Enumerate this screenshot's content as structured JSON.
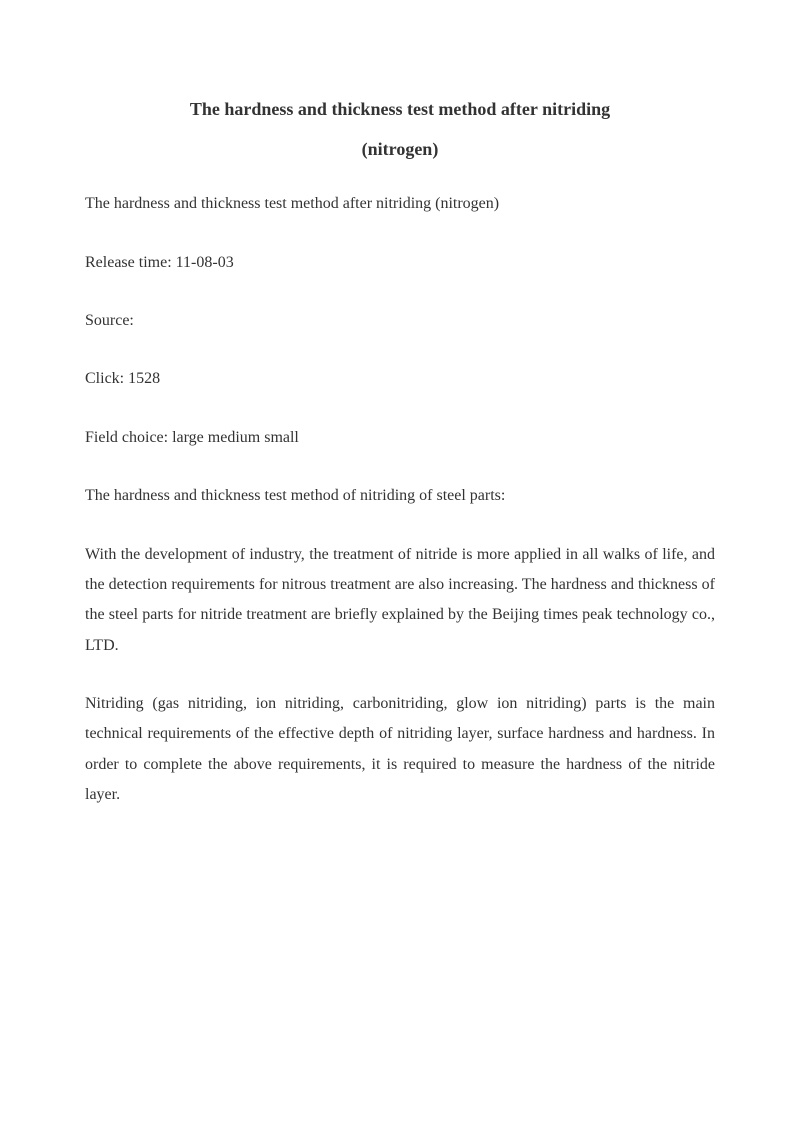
{
  "title": {
    "line1": "The hardness and thickness test method after nitriding",
    "line2": "(nitrogen)"
  },
  "paragraphs": {
    "p1": "The hardness and thickness test method after nitriding (nitrogen)",
    "p2": "Release time: 11-08-03",
    "p3": "Source:",
    "p4": "Click: 1528",
    "p5": "Field choice: large medium small",
    "p6": "The hardness and thickness test method of nitriding of steel parts:",
    "p7": "With the development of industry, the treatment of nitride is more applied in all walks of life, and the detection requirements for nitrous treatment are also increasing. The hardness and thickness of the steel parts for nitride treatment are briefly explained by the Beijing times peak technology co., LTD.",
    "p8": "Nitriding (gas nitriding, ion nitriding, carbonitriding, glow ion nitriding) parts is the main technical requirements of the effective depth of nitriding layer, surface hardness and hardness. In order to complete the above requirements, it is required to measure the hardness of the nitride layer."
  }
}
